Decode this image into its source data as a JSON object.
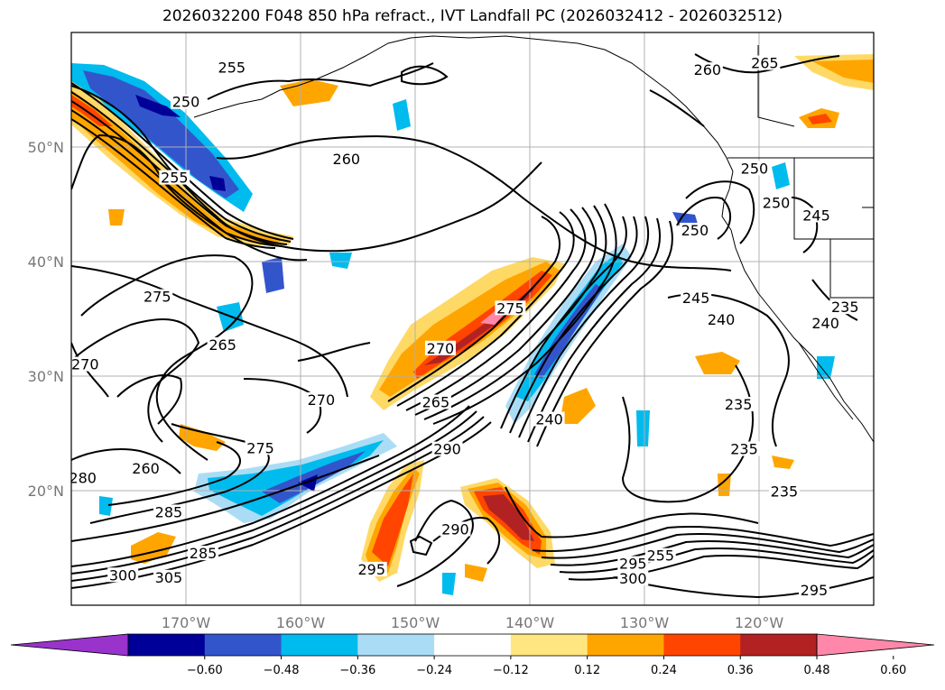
{
  "title": "2026032200 F048 850 hPa refract., IVT Landfall PC (2026032412 - 2026032512)",
  "map": {
    "lon_range": [
      -180,
      -110
    ],
    "lat_range": [
      10,
      60
    ],
    "lon_ticks": [
      {
        "lon": -170,
        "label": "170°W"
      },
      {
        "lon": -160,
        "label": "160°W"
      },
      {
        "lon": -150,
        "label": "150°W"
      },
      {
        "lon": -140,
        "label": "140°W"
      },
      {
        "lon": -130,
        "label": "130°W"
      },
      {
        "lon": -120,
        "label": "120°W"
      }
    ],
    "lat_ticks": [
      {
        "lat": 20,
        "label": "20°N"
      },
      {
        "lat": 30,
        "label": "30°N"
      },
      {
        "lat": 40,
        "label": "40°N"
      },
      {
        "lat": 50,
        "label": "50°N"
      }
    ],
    "grid": true,
    "contour_labels": [
      {
        "lon": -166,
        "lat": 56.8,
        "text": "255"
      },
      {
        "lon": -170,
        "lat": 53.8,
        "text": "250"
      },
      {
        "lon": -156,
        "lat": 48.8,
        "text": "260"
      },
      {
        "lon": -171,
        "lat": 47.2,
        "text": "255"
      },
      {
        "lon": -172.5,
        "lat": 36.8,
        "text": "275"
      },
      {
        "lon": -166.8,
        "lat": 32.6,
        "text": "265"
      },
      {
        "lon": -178.8,
        "lat": 30.9,
        "text": "270"
      },
      {
        "lon": -158.2,
        "lat": 27.8,
        "text": "270"
      },
      {
        "lon": -163.5,
        "lat": 23.6,
        "text": "275"
      },
      {
        "lon": -173.5,
        "lat": 21.8,
        "text": "260"
      },
      {
        "lon": -179,
        "lat": 21,
        "text": "280"
      },
      {
        "lon": -171.5,
        "lat": 18,
        "text": "285"
      },
      {
        "lon": -168.5,
        "lat": 14.4,
        "text": "285"
      },
      {
        "lon": -175.5,
        "lat": 12.5,
        "text": "300"
      },
      {
        "lon": -171.5,
        "lat": 12.3,
        "text": "305"
      },
      {
        "lon": -147.8,
        "lat": 32.3,
        "text": "270"
      },
      {
        "lon": -148.2,
        "lat": 27.6,
        "text": "265"
      },
      {
        "lon": -141.7,
        "lat": 35.8,
        "text": "275"
      },
      {
        "lon": -147.2,
        "lat": 23.5,
        "text": "290"
      },
      {
        "lon": -146.5,
        "lat": 16.5,
        "text": "290"
      },
      {
        "lon": -153.8,
        "lat": 13,
        "text": "295"
      },
      {
        "lon": -138.3,
        "lat": 26.1,
        "text": "240"
      },
      {
        "lon": -125.5,
        "lat": 36.7,
        "text": "245"
      },
      {
        "lon": -123.3,
        "lat": 34.8,
        "text": "240"
      },
      {
        "lon": -121.8,
        "lat": 27.4,
        "text": "235"
      },
      {
        "lon": -121.3,
        "lat": 23.5,
        "text": "235"
      },
      {
        "lon": -117.8,
        "lat": 19.8,
        "text": "235"
      },
      {
        "lon": -128.6,
        "lat": 14.2,
        "text": "255"
      },
      {
        "lon": -131,
        "lat": 13.5,
        "text": "295"
      },
      {
        "lon": -131,
        "lat": 12.2,
        "text": "300"
      },
      {
        "lon": -115.2,
        "lat": 11.2,
        "text": "295"
      },
      {
        "lon": -124.5,
        "lat": 56.6,
        "text": "260"
      },
      {
        "lon": -119.5,
        "lat": 57.2,
        "text": "265"
      },
      {
        "lon": -120.4,
        "lat": 48,
        "text": "250"
      },
      {
        "lon": -118.5,
        "lat": 45,
        "text": "250"
      },
      {
        "lon": -115,
        "lat": 43.9,
        "text": "245"
      },
      {
        "lon": -125.6,
        "lat": 42.6,
        "text": "250"
      },
      {
        "lon": -112.5,
        "lat": 35.9,
        "text": "235"
      },
      {
        "lon": -114.2,
        "lat": 34.5,
        "text": "240"
      }
    ]
  },
  "colorbar": {
    "ticks": [
      "−0.60",
      "−0.48",
      "−0.36",
      "−0.24",
      "−0.12",
      "0.12",
      "0.24",
      "0.36",
      "0.48",
      "0.60"
    ],
    "colors": [
      "#9933cc",
      "#000099",
      "#3355cc",
      "#00bbee",
      "#aaddf5",
      "#ffffff",
      "#ffe680",
      "#ffa500",
      "#ff4500",
      "#b22222",
      "#ff88aa"
    ]
  },
  "colors": {
    "orange": "#ffa500",
    "gold": "#ffd966",
    "red": "#ff4500",
    "darkred": "#b22222",
    "pink": "#ff88aa",
    "cyan": "#00bbee",
    "lightblue": "#aaddf5",
    "blue": "#3355cc",
    "navy": "#000099",
    "grid": "#b0b0b0",
    "tick": "#777777",
    "contour": "#000000"
  }
}
